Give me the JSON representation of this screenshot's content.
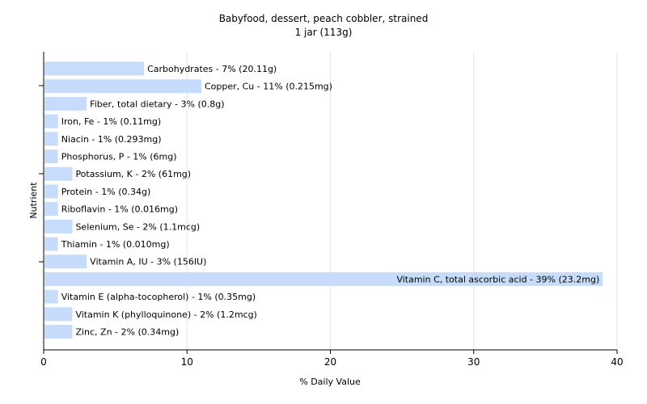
{
  "chart_data": {
    "type": "bar",
    "orientation": "horizontal",
    "title": "Babyfood, dessert, peach cobbler, strained",
    "subtitle": "1 jar (113g)",
    "xlabel": "% Daily Value",
    "ylabel": "Nutrient",
    "xlim": [
      0,
      40
    ],
    "xticks": [
      0,
      10,
      20,
      30,
      40
    ],
    "grid": true,
    "bar_color": "#c6dcfa",
    "categories": [
      "Carbohydrates",
      "Copper, Cu",
      "Fiber, total dietary",
      "Iron, Fe",
      "Niacin",
      "Phosphorus, P",
      "Potassium, K",
      "Protein",
      "Riboflavin",
      "Selenium, Se",
      "Thiamin",
      "Vitamin A, IU",
      "Vitamin C, total ascorbic acid",
      "Vitamin E (alpha-tocopherol)",
      "Vitamin K (phylloquinone)",
      "Zinc, Zn"
    ],
    "values": [
      7,
      11,
      3,
      1,
      1,
      1,
      2,
      1,
      1,
      2,
      1,
      3,
      39,
      1,
      2,
      2
    ],
    "labels": [
      "Carbohydrates - 7% (20.11g)",
      "Copper, Cu - 11% (0.215mg)",
      "Fiber, total dietary - 3% (0.8g)",
      "Iron, Fe - 1% (0.11mg)",
      "Niacin - 1% (0.293mg)",
      "Phosphorus, P - 1% (6mg)",
      "Potassium, K - 2% (61mg)",
      "Protein - 1% (0.34g)",
      "Riboflavin - 1% (0.016mg)",
      "Selenium, Se - 2% (1.1mcg)",
      "Thiamin - 1% (0.010mg)",
      "Vitamin A, IU - 3% (156IU)",
      "Vitamin C, total ascorbic acid - 39% (23.2mg)",
      "Vitamin E (alpha-tocopherol) - 1% (0.35mg)",
      "Vitamin K (phylloquinone) - 2% (1.2mcg)",
      "Zinc, Zn - 2% (0.34mg)"
    ]
  }
}
